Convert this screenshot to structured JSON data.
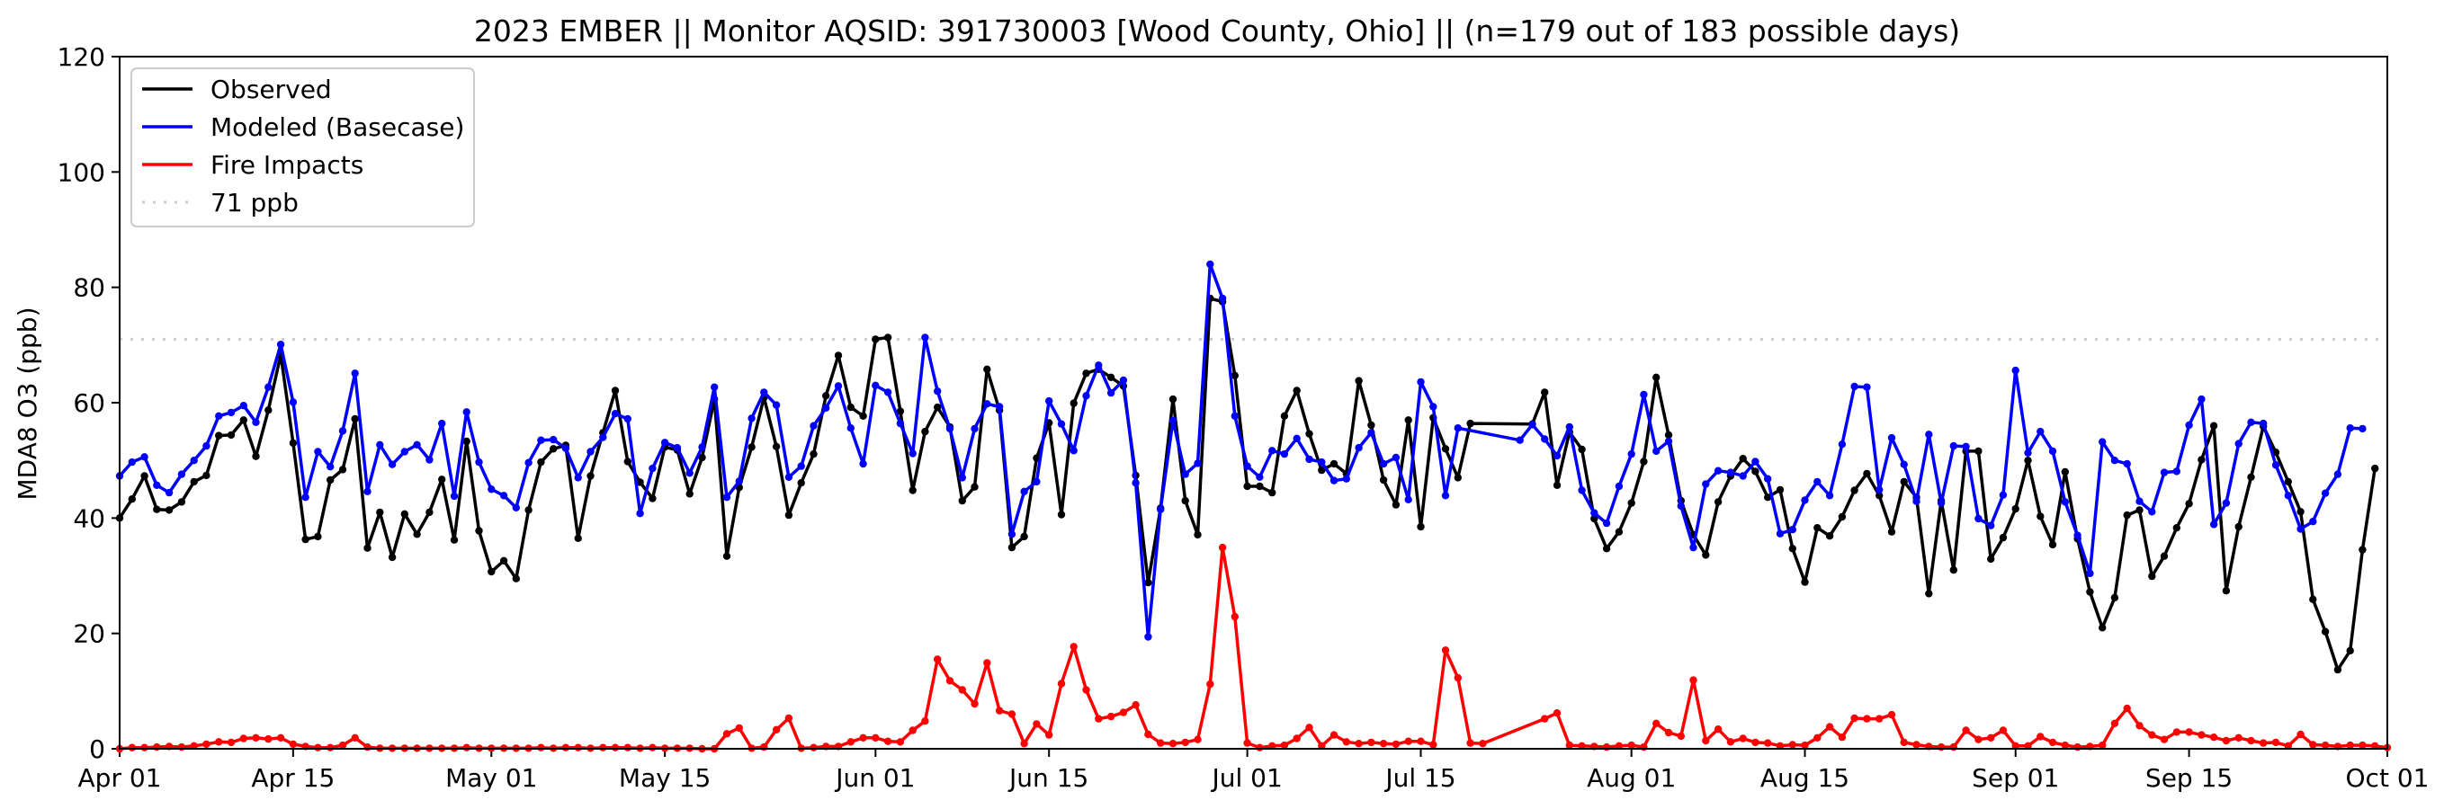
{
  "chart_data": {
    "type": "line",
    "title": "2023 EMBER || Monitor AQSID: 391730003 [Wood County, Ohio] || (n=179 out of 183 possible days)",
    "xlabel": "",
    "ylabel": "MDA8 O3 (ppb)",
    "x_start": "2023-04-01",
    "xlim": [
      "Apr 01",
      "Oct 01"
    ],
    "ylim": [
      0,
      120
    ],
    "yticks": [
      0,
      20,
      40,
      60,
      80,
      100,
      120
    ],
    "xticks": [
      {
        "label": "Apr 01",
        "day": 0
      },
      {
        "label": "Apr 15",
        "day": 14
      },
      {
        "label": "May 01",
        "day": 30
      },
      {
        "label": "May 15",
        "day": 44
      },
      {
        "label": "Jun 01",
        "day": 61
      },
      {
        "label": "Jun 15",
        "day": 75
      },
      {
        "label": "Jul 01",
        "day": 91
      },
      {
        "label": "Jul 15",
        "day": 105
      },
      {
        "label": "Aug 01",
        "day": 122
      },
      {
        "label": "Aug 15",
        "day": 136
      },
      {
        "label": "Sep 01",
        "day": 153
      },
      {
        "label": "Sep 15",
        "day": 167
      },
      {
        "label": "Oct 01",
        "day": 183
      }
    ],
    "grid": false,
    "legend_position": "top-left",
    "threshold": {
      "label": "71 ppb",
      "value": 71,
      "color": "#cccccc"
    },
    "missing_days": [
      112,
      113,
      114,
      115
    ],
    "series": [
      {
        "name": "Observed",
        "color": "#000000",
        "values": [
          40.0,
          43.3,
          47.3,
          41.5,
          41.4,
          42.8,
          46.3,
          47.4,
          54.3,
          54.4,
          57.0,
          50.7,
          58.7,
          68.3,
          53.0,
          36.3,
          36.8,
          46.6,
          48.4,
          57.2,
          34.8,
          41.0,
          33.2,
          40.7,
          37.2,
          41.0,
          46.7,
          36.2,
          53.3,
          37.8,
          30.7,
          32.6,
          29.5,
          41.4,
          49.7,
          52.0,
          52.6,
          36.5,
          47.3,
          54.8,
          62.1,
          49.8,
          46.2,
          43.4,
          52.3,
          51.8,
          44.2,
          50.5,
          60.6,
          33.4,
          45.3,
          52.3,
          60.9,
          52.4,
          40.5,
          46.1,
          51.1,
          61.2,
          68.2,
          59.2,
          57.7,
          71.0,
          71.3,
          58.5,
          44.8,
          55.0,
          59.2,
          55.8,
          43.0,
          45.4,
          65.8,
          58.7,
          34.9,
          36.8,
          50.4,
          56.5,
          40.6,
          59.9,
          65.1,
          65.8,
          64.4,
          62.9,
          47.4,
          28.8,
          41.7,
          60.6,
          43.0,
          37.1,
          78.1,
          77.5,
          64.7,
          45.5,
          45.5,
          44.4,
          57.7,
          62.1,
          54.6,
          48.3,
          49.4,
          47.7,
          63.8,
          56.1,
          46.6,
          42.3,
          57.0,
          38.5,
          57.4,
          52.0,
          47.0,
          56.4,
          null,
          null,
          null,
          null,
          56.3,
          61.8,
          45.7,
          54.9,
          51.9,
          39.9,
          34.7,
          37.6,
          42.6,
          49.8,
          64.4,
          54.4,
          43.0,
          37.1,
          33.6,
          42.8,
          47.3,
          50.3,
          48.1,
          43.6,
          44.9,
          34.7,
          28.9,
          38.3,
          36.9,
          40.2,
          44.8,
          47.7,
          43.9,
          37.6,
          46.3,
          43.6,
          26.9,
          43.0,
          31.0,
          51.6,
          51.6,
          32.9,
          36.6,
          41.6,
          50.0,
          40.3,
          35.4,
          48.0,
          36.4,
          27.2,
          21.0,
          26.2,
          40.5,
          41.4,
          29.9,
          33.4,
          38.3,
          42.5,
          50.1,
          56.0,
          27.4,
          38.5,
          47.1,
          55.9,
          51.4,
          46.3,
          41.1,
          25.9,
          20.3,
          13.7,
          17.0,
          34.5,
          48.6
        ]
      },
      {
        "name": "Modeled (Basecase)",
        "color": "#0000ff",
        "values": [
          47.3,
          49.7,
          50.6,
          45.7,
          44.4,
          47.6,
          50.0,
          52.5,
          57.7,
          58.3,
          59.5,
          56.6,
          62.7,
          70.1,
          60.1,
          43.6,
          51.5,
          48.9,
          55.1,
          65.1,
          44.6,
          52.7,
          49.3,
          51.5,
          52.7,
          50.1,
          56.4,
          43.8,
          58.4,
          49.7,
          45.0,
          43.9,
          41.8,
          49.6,
          53.5,
          53.6,
          52.1,
          47.0,
          51.5,
          54.0,
          58.1,
          57.2,
          40.8,
          48.6,
          53.1,
          52.2,
          47.8,
          52.3,
          62.7,
          43.6,
          46.4,
          57.3,
          61.8,
          59.6,
          47.1,
          49.0,
          56.0,
          59.1,
          62.9,
          55.6,
          49.4,
          63.0,
          61.8,
          56.4,
          51.2,
          71.3,
          62.0,
          55.5,
          47.0,
          55.5,
          59.8,
          59.3,
          37.2,
          44.6,
          46.3,
          60.3,
          56.3,
          51.7,
          61.2,
          66.5,
          61.7,
          63.9,
          46.1,
          19.4,
          41.5,
          56.9,
          47.6,
          49.5,
          84.0,
          78.1,
          57.7,
          49.0,
          47.1,
          51.7,
          51.1,
          53.8,
          50.2,
          49.7,
          46.5,
          46.8,
          52.2,
          54.8,
          49.4,
          50.5,
          43.2,
          63.6,
          59.3,
          43.9,
          55.6,
          null,
          null,
          null,
          null,
          53.5,
          56.2,
          53.7,
          50.8,
          55.8,
          44.8,
          40.9,
          39.1,
          45.5,
          51.1,
          61.4,
          51.6,
          53.3,
          42.1,
          34.9,
          45.9,
          48.2,
          47.9,
          47.3,
          49.8,
          46.8,
          37.3,
          38.0,
          43.1,
          46.3,
          43.9,
          52.8,
          62.8,
          62.7,
          44.9,
          53.9,
          49.3,
          42.9,
          54.5,
          42.6,
          52.5,
          52.4,
          39.9,
          38.7,
          44.0,
          65.6,
          51.3,
          55.0,
          51.6,
          42.8,
          37.0,
          30.4,
          53.2,
          50.0,
          49.4,
          42.9,
          41.1,
          47.9,
          48.1,
          56.1,
          60.6,
          38.9,
          42.6,
          52.9,
          56.6,
          56.4,
          49.2,
          43.9,
          38.1,
          39.4,
          44.3,
          47.6,
          55.6,
          55.5
        ]
      },
      {
        "name": "Fire Impacts",
        "color": "#ff0000",
        "values": [
          0.0,
          0.2,
          0.2,
          0.3,
          0.4,
          0.3,
          0.5,
          0.8,
          1.2,
          1.1,
          1.8,
          1.9,
          1.7,
          1.9,
          0.8,
          0.4,
          0.2,
          0.2,
          0.6,
          1.9,
          0.3,
          0.1,
          0.1,
          0.1,
          0.1,
          0.1,
          0.1,
          0.1,
          0.2,
          0.1,
          0.1,
          0.1,
          0.1,
          0.1,
          0.2,
          0.1,
          0.2,
          0.2,
          0.1,
          0.2,
          0.2,
          0.2,
          0.1,
          0.2,
          0.1,
          0.1,
          0.1,
          0.0,
          0.0,
          2.6,
          3.6,
          0.1,
          0.3,
          3.3,
          5.3,
          0.1,
          0.2,
          0.4,
          0.4,
          1.2,
          1.9,
          1.9,
          1.3,
          1.2,
          3.2,
          4.8,
          15.5,
          11.8,
          10.2,
          7.8,
          14.9,
          6.6,
          6.0,
          0.9,
          4.3,
          2.4,
          11.3,
          17.7,
          10.2,
          5.2,
          5.6,
          6.3,
          7.6,
          2.5,
          1.0,
          0.9,
          1.1,
          1.6,
          11.2,
          34.9,
          22.9,
          1.0,
          0.2,
          0.5,
          0.6,
          1.8,
          3.7,
          0.5,
          2.4,
          1.2,
          0.9,
          1.1,
          0.9,
          0.8,
          1.3,
          1.3,
          0.7,
          17.1,
          12.3,
          1.0,
          0.9,
          null,
          null,
          null,
          null,
          5.2,
          6.2,
          0.6,
          0.5,
          0.4,
          0.3,
          0.5,
          0.6,
          0.3,
          4.4,
          2.8,
          2.2,
          11.9,
          1.4,
          3.4,
          1.2,
          1.8,
          1.1,
          1.0,
          0.5,
          0.7,
          0.6,
          1.9,
          3.8,
          2.0,
          5.3,
          5.2,
          5.2,
          5.9,
          1.1,
          0.7,
          0.4,
          0.3,
          0.3,
          3.2,
          1.6,
          1.9,
          3.2,
          0.5,
          0.5,
          2.1,
          1.1,
          0.6,
          0.3,
          0.4,
          0.6,
          4.4,
          7.0,
          4.0,
          2.4,
          1.6,
          2.9,
          2.9,
          2.4,
          2.0,
          1.4,
          1.9,
          1.4,
          1.0,
          1.1,
          0.5,
          2.5,
          0.7,
          0.6,
          0.4,
          0.6,
          0.6,
          0.5,
          0.2
        ]
      }
    ]
  }
}
